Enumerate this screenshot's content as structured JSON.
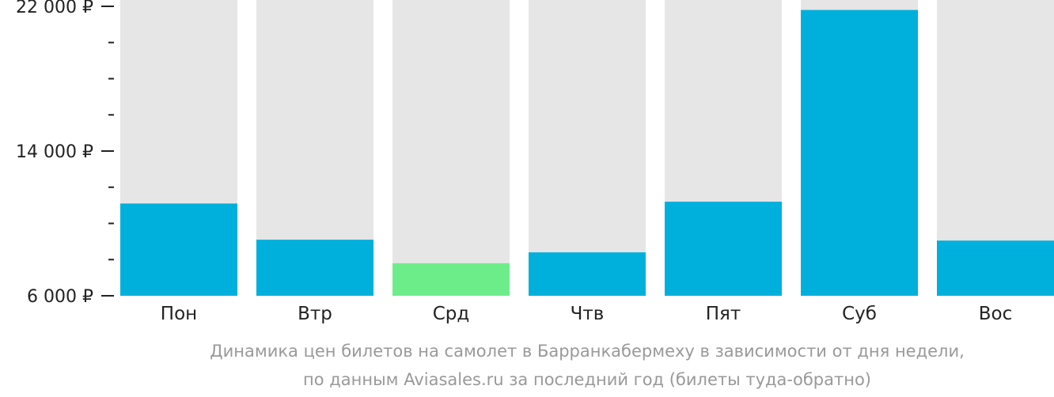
{
  "chart_data": {
    "type": "bar",
    "categories": [
      "Пон",
      "Втр",
      "Срд",
      "Чтв",
      "Пят",
      "Суб",
      "Вос"
    ],
    "values": [
      11100,
      9100,
      7800,
      8400,
      11200,
      21800,
      9050
    ],
    "ylim": [
      6000,
      22000
    ],
    "yticks": [
      {
        "value": 22000,
        "label": "22 000 ₽"
      },
      {
        "value": 14000,
        "label": "14 000 ₽"
      },
      {
        "value": 6000,
        "label": "6 000 ₽"
      }
    ],
    "minor_tick_step": 2000,
    "bar_color": "#00b0dc",
    "lowest_bar_color": "#6ded8a",
    "background_bar_color": "#e6e6e6",
    "grid": false,
    "legend": false
  },
  "caption": {
    "line1": "Динамика цен билетов на самолет в Барранкабермеху в зависимости от дня недели,",
    "line2": "по данным Aviasales.ru за последний год (билеты туда-обратно)"
  }
}
